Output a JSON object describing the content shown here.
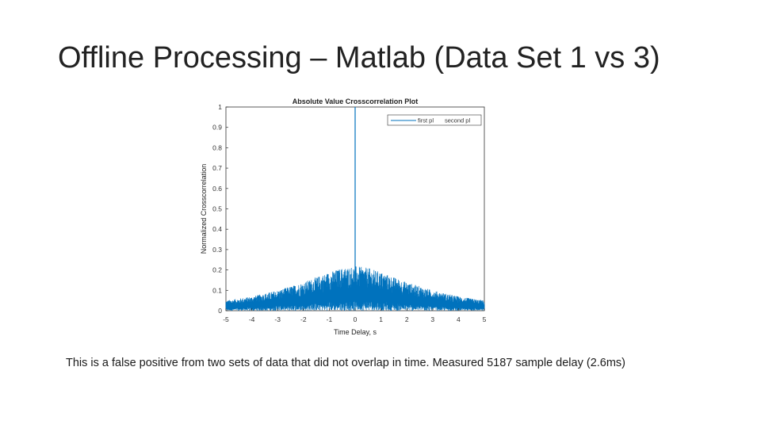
{
  "slide": {
    "title": "Offline Processing – Matlab (Data Set 1 vs 3)",
    "caption": "This is a false positive from two sets of data that did not overlap in time. Measured 5187 sample delay (2.6ms)"
  },
  "chart_data": {
    "type": "line",
    "title": "Absolute Value Crosscorrelation Plot",
    "xlabel": "Time Delay, s",
    "ylabel": "Normalized Crosscorrelation",
    "xlim": [
      -5,
      5
    ],
    "ylim": [
      0,
      1
    ],
    "xticks": [
      -5,
      -4,
      -3,
      -2,
      -1,
      0,
      1,
      2,
      3,
      4,
      5
    ],
    "yticks": [
      0,
      0.1,
      0.2,
      0.3,
      0.4,
      0.5,
      0.6,
      0.7,
      0.8,
      0.9,
      1
    ],
    "grid": false,
    "legend": {
      "position": "top-right",
      "entries": [
        "first pl",
        "second pl"
      ]
    },
    "series": [
      {
        "name": "first pl",
        "color": "#0072bd",
        "peak": {
          "x": 0,
          "y": 1
        },
        "envelope": {
          "x": [
            -5,
            -4,
            -3,
            -2,
            -1,
            -0.5,
            0,
            0.5,
            1,
            2,
            3,
            4,
            5
          ],
          "y": [
            0.05,
            0.07,
            0.1,
            0.14,
            0.19,
            0.21,
            0.22,
            0.21,
            0.19,
            0.14,
            0.1,
            0.07,
            0.05
          ]
        }
      },
      {
        "name": "second pl",
        "color": "#0072bd"
      }
    ]
  }
}
